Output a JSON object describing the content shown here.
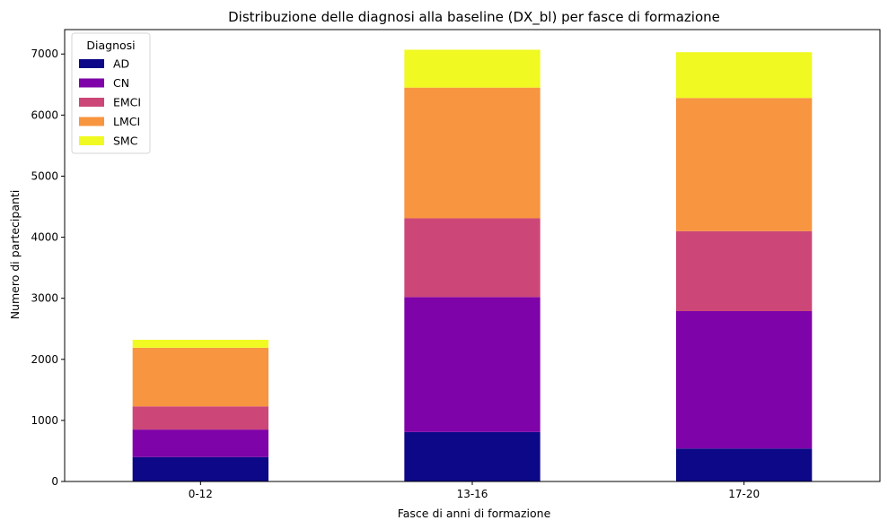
{
  "chart_data": {
    "type": "bar",
    "stacked": true,
    "title": "Distribuzione delle diagnosi alla baseline (DX_bl) per fasce di formazione",
    "xlabel": "Fasce di anni di formazione",
    "ylabel": "Numero di partecipanti",
    "categories": [
      "0-12",
      "13-16",
      "17-20"
    ],
    "ylim": [
      0,
      7400
    ],
    "yticks": [
      0,
      1000,
      2000,
      3000,
      4000,
      5000,
      6000,
      7000
    ],
    "grid": false,
    "legend": {
      "title": "Diagnosi",
      "placement": "top-left"
    },
    "series": [
      {
        "name": "AD",
        "color": "#0d0887",
        "values": [
          400,
          810,
          540
        ]
      },
      {
        "name": "CN",
        "color": "#7e03a8",
        "values": [
          450,
          2210,
          2250
        ]
      },
      {
        "name": "EMCI",
        "color": "#cc4778",
        "values": [
          380,
          1290,
          1310
        ]
      },
      {
        "name": "LMCI",
        "color": "#f89540",
        "values": [
          960,
          2140,
          2180
        ]
      },
      {
        "name": "SMC",
        "color": "#f0f921",
        "values": [
          130,
          620,
          750
        ]
      }
    ]
  }
}
